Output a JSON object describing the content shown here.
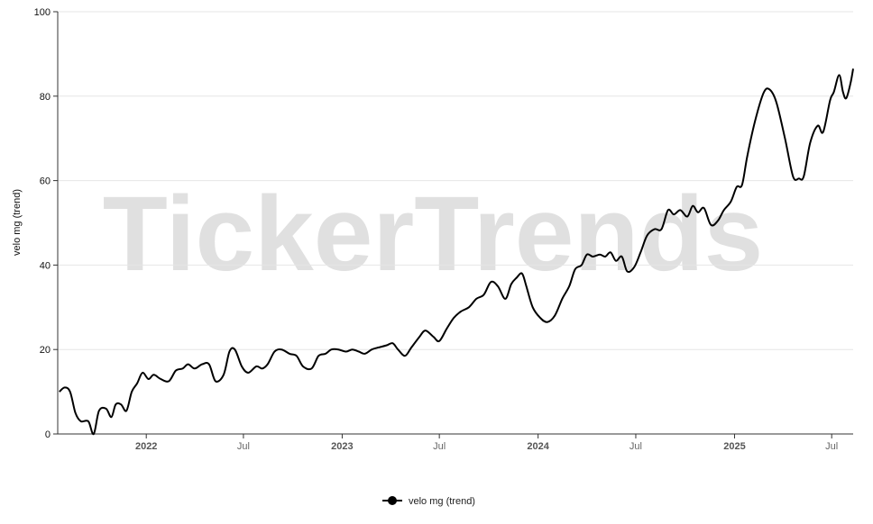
{
  "watermark": "TickerTrends",
  "chart_data": {
    "type": "line",
    "ylabel": "velo mg  (trend)",
    "xlabel": "",
    "ylim": [
      0,
      100
    ],
    "yticks": [
      0,
      20,
      40,
      60,
      80,
      100
    ],
    "grid": true,
    "legend_position": "bottom-center",
    "xlim": [
      "2021-07-20",
      "2025-08-10"
    ],
    "xticks": [
      {
        "date": "2022-01-01",
        "label": "2022",
        "major": true
      },
      {
        "date": "2022-07-01",
        "label": "Jul",
        "major": false
      },
      {
        "date": "2023-01-01",
        "label": "2023",
        "major": true
      },
      {
        "date": "2023-07-01",
        "label": "Jul",
        "major": false
      },
      {
        "date": "2024-01-01",
        "label": "2024",
        "major": true
      },
      {
        "date": "2024-07-01",
        "label": "Jul",
        "major": false
      },
      {
        "date": "2025-01-01",
        "label": "2025",
        "major": true
      },
      {
        "date": "2025-07-01",
        "label": "Jul",
        "major": false
      }
    ],
    "series": [
      {
        "name": "velo mg  (trend)",
        "color": "#000000",
        "points": [
          [
            "2021-07-23",
            10
          ],
          [
            "2021-08-02",
            11
          ],
          [
            "2021-08-12",
            10
          ],
          [
            "2021-08-22",
            5
          ],
          [
            "2021-09-01",
            3
          ],
          [
            "2021-09-15",
            3
          ],
          [
            "2021-09-25",
            0
          ],
          [
            "2021-10-05",
            5.5
          ],
          [
            "2021-10-18",
            6
          ],
          [
            "2021-10-28",
            4
          ],
          [
            "2021-11-05",
            7
          ],
          [
            "2021-11-15",
            7
          ],
          [
            "2021-11-25",
            5.5
          ],
          [
            "2021-12-05",
            10
          ],
          [
            "2021-12-15",
            12
          ],
          [
            "2021-12-25",
            14.5
          ],
          [
            "2022-01-05",
            13
          ],
          [
            "2022-01-15",
            14
          ],
          [
            "2022-01-28",
            13
          ],
          [
            "2022-02-12",
            12.5
          ],
          [
            "2022-02-25",
            15
          ],
          [
            "2022-03-10",
            15.5
          ],
          [
            "2022-03-20",
            16.5
          ],
          [
            "2022-04-01",
            15.5
          ],
          [
            "2022-04-15",
            16.5
          ],
          [
            "2022-04-28",
            16.5
          ],
          [
            "2022-05-10",
            12.5
          ],
          [
            "2022-05-25",
            14
          ],
          [
            "2022-06-05",
            19.5
          ],
          [
            "2022-06-15",
            20
          ],
          [
            "2022-06-28",
            16
          ],
          [
            "2022-07-10",
            14.5
          ],
          [
            "2022-07-25",
            16
          ],
          [
            "2022-08-05",
            15.5
          ],
          [
            "2022-08-15",
            16.5
          ],
          [
            "2022-08-28",
            19.5
          ],
          [
            "2022-09-10",
            20
          ],
          [
            "2022-09-25",
            19
          ],
          [
            "2022-10-08",
            18.5
          ],
          [
            "2022-10-20",
            16
          ],
          [
            "2022-11-05",
            15.5
          ],
          [
            "2022-11-18",
            18.5
          ],
          [
            "2022-12-01",
            19
          ],
          [
            "2022-12-12",
            20
          ],
          [
            "2022-12-25",
            20
          ],
          [
            "2023-01-08",
            19.5
          ],
          [
            "2023-01-20",
            20
          ],
          [
            "2023-02-01",
            19.5
          ],
          [
            "2023-02-12",
            19
          ],
          [
            "2023-02-25",
            20
          ],
          [
            "2023-03-10",
            20.5
          ],
          [
            "2023-03-25",
            21
          ],
          [
            "2023-04-05",
            21.5
          ],
          [
            "2023-04-15",
            20
          ],
          [
            "2023-04-28",
            18.5
          ],
          [
            "2023-05-10",
            20.5
          ],
          [
            "2023-05-25",
            23
          ],
          [
            "2023-06-05",
            24.5
          ],
          [
            "2023-06-20",
            23
          ],
          [
            "2023-07-01",
            22
          ],
          [
            "2023-07-15",
            25
          ],
          [
            "2023-07-28",
            27.5
          ],
          [
            "2023-08-10",
            29
          ],
          [
            "2023-08-25",
            30
          ],
          [
            "2023-09-08",
            32
          ],
          [
            "2023-09-22",
            33
          ],
          [
            "2023-10-05",
            36
          ],
          [
            "2023-10-18",
            35
          ],
          [
            "2023-11-01",
            32
          ],
          [
            "2023-11-12",
            35.5
          ],
          [
            "2023-11-22",
            37
          ],
          [
            "2023-12-02",
            38
          ],
          [
            "2023-12-10",
            35
          ],
          [
            "2023-12-22",
            30
          ],
          [
            "2024-01-05",
            27.5
          ],
          [
            "2024-01-18",
            26.5
          ],
          [
            "2024-02-01",
            28
          ],
          [
            "2024-02-15",
            32
          ],
          [
            "2024-02-28",
            35
          ],
          [
            "2024-03-10",
            39
          ],
          [
            "2024-03-22",
            40
          ],
          [
            "2024-04-01",
            42.5
          ],
          [
            "2024-04-12",
            42
          ],
          [
            "2024-04-25",
            42.5
          ],
          [
            "2024-05-05",
            42
          ],
          [
            "2024-05-15",
            43
          ],
          [
            "2024-05-25",
            41
          ],
          [
            "2024-06-05",
            42
          ],
          [
            "2024-06-15",
            38.5
          ],
          [
            "2024-06-28",
            39.5
          ],
          [
            "2024-07-10",
            43
          ],
          [
            "2024-07-22",
            47
          ],
          [
            "2024-08-05",
            48.5
          ],
          [
            "2024-08-18",
            48.5
          ],
          [
            "2024-08-30",
            53
          ],
          [
            "2024-09-10",
            52
          ],
          [
            "2024-09-22",
            53
          ],
          [
            "2024-10-05",
            51.5
          ],
          [
            "2024-10-15",
            54
          ],
          [
            "2024-10-25",
            52.5
          ],
          [
            "2024-11-05",
            53.5
          ],
          [
            "2024-11-18",
            49.5
          ],
          [
            "2024-12-01",
            50.5
          ],
          [
            "2024-12-12",
            53
          ],
          [
            "2024-12-25",
            55
          ],
          [
            "2025-01-05",
            58.5
          ],
          [
            "2025-01-15",
            59
          ],
          [
            "2025-01-25",
            66
          ],
          [
            "2025-02-10",
            75
          ],
          [
            "2025-02-25",
            81
          ],
          [
            "2025-03-08",
            81.5
          ],
          [
            "2025-03-20",
            78.5
          ],
          [
            "2025-04-05",
            70
          ],
          [
            "2025-04-20",
            61
          ],
          [
            "2025-05-01",
            60.5
          ],
          [
            "2025-05-10",
            61
          ],
          [
            "2025-05-22",
            69
          ],
          [
            "2025-06-05",
            73
          ],
          [
            "2025-06-15",
            71.5
          ],
          [
            "2025-06-28",
            79
          ],
          [
            "2025-07-05",
            81
          ],
          [
            "2025-07-15",
            85
          ],
          [
            "2025-07-22",
            81
          ],
          [
            "2025-07-28",
            79.5
          ],
          [
            "2025-08-05",
            83
          ],
          [
            "2025-08-10",
            86.5
          ]
        ]
      }
    ]
  }
}
